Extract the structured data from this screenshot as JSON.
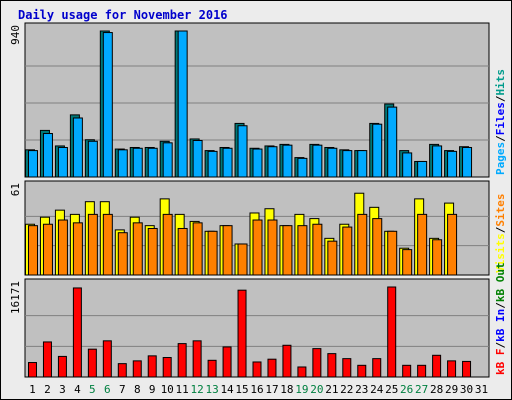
{
  "title": "Daily usage for November 2016",
  "colors": {
    "background": "#ececec",
    "panel": "#c0c0c0",
    "pages": "#00aaff",
    "files": "#0000ff",
    "hits": "#009c8c",
    "visits": "#ffff00",
    "sites": "#ff8000",
    "kb_in": "#0000ff",
    "kb_out": "#008000",
    "kb_f": "#ff0000",
    "weekday_text": "#000000",
    "weekend_text": "#008040"
  },
  "chart_data": [
    {
      "type": "bar",
      "panel": "hits",
      "ymax_label": "940",
      "ylim": [
        0,
        940
      ],
      "categories": [
        "1",
        "2",
        "3",
        "4",
        "5",
        "6",
        "7",
        "8",
        "9",
        "10",
        "11",
        "12",
        "13",
        "14",
        "15",
        "16",
        "17",
        "18",
        "19",
        "20",
        "21",
        "22",
        "23",
        "24",
        "25",
        "26",
        "27",
        "28",
        "29",
        "30",
        "31"
      ],
      "weekend": [
        "5",
        "6",
        "12",
        "13",
        "19",
        "20",
        "26",
        "27"
      ],
      "legend": [
        "Pages",
        "/",
        "Files",
        "/",
        "Hits"
      ],
      "series": [
        {
          "name": "Hits",
          "values": [
            175,
            300,
            200,
            400,
            240,
            940,
            180,
            190,
            190,
            230,
            940,
            245,
            170,
            190,
            345,
            185,
            200,
            210,
            125,
            210,
            190,
            175,
            170,
            345,
            470,
            170,
            100,
            210,
            170,
            195,
            0
          ]
        },
        {
          "name": "Pages",
          "values": [
            170,
            280,
            190,
            380,
            230,
            930,
            175,
            185,
            185,
            220,
            940,
            235,
            165,
            185,
            330,
            180,
            195,
            205,
            120,
            205,
            185,
            170,
            170,
            340,
            450,
            155,
            100,
            200,
            165,
            190,
            0
          ]
        }
      ]
    },
    {
      "type": "bar",
      "panel": "visits",
      "ymax_label": "61",
      "ylim": [
        0,
        61
      ],
      "categories": [
        "1",
        "2",
        "3",
        "4",
        "5",
        "6",
        "7",
        "8",
        "9",
        "10",
        "11",
        "12",
        "13",
        "14",
        "15",
        "16",
        "17",
        "18",
        "19",
        "20",
        "21",
        "22",
        "23",
        "24",
        "25",
        "26",
        "27",
        "28",
        "29",
        "30",
        "31"
      ],
      "weekend": [
        "5",
        "6",
        "12",
        "13",
        "19",
        "20",
        "26",
        "27"
      ],
      "legend": [
        "Visits",
        "/",
        "Sites"
      ],
      "series": [
        {
          "name": "Visits",
          "values": [
            36,
            41,
            46,
            43,
            52,
            52,
            32,
            41,
            35,
            54,
            43,
            38,
            31,
            35,
            22,
            44,
            47,
            35,
            43,
            40,
            26,
            36,
            58,
            48,
            31,
            19,
            54,
            26,
            51,
            0,
            0
          ]
        },
        {
          "name": "Sites",
          "values": [
            35,
            36,
            39,
            37,
            43,
            43,
            30,
            37,
            33,
            43,
            33,
            37,
            31,
            35,
            22,
            39,
            39,
            35,
            35,
            36,
            24,
            34,
            43,
            40,
            31,
            18,
            43,
            25,
            43,
            0,
            0
          ]
        }
      ]
    },
    {
      "type": "bar",
      "panel": "kbytes",
      "ymax_label": "16171",
      "ylim": [
        0,
        16171
      ],
      "categories": [
        "1",
        "2",
        "3",
        "4",
        "5",
        "6",
        "7",
        "8",
        "9",
        "10",
        "11",
        "12",
        "13",
        "14",
        "15",
        "16",
        "17",
        "18",
        "19",
        "20",
        "21",
        "22",
        "23",
        "24",
        "25",
        "26",
        "27",
        "28",
        "29",
        "30",
        "31"
      ],
      "weekend": [
        "5",
        "6",
        "12",
        "13",
        "19",
        "20",
        "26",
        "27"
      ],
      "legend": [
        "kB F",
        "/",
        "kB In",
        "/",
        "kB Out"
      ],
      "series": [
        {
          "name": "kB F",
          "values": [
            2600,
            6300,
            3700,
            16000,
            5000,
            6500,
            2400,
            2900,
            3800,
            3500,
            6000,
            6500,
            3000,
            5400,
            15600,
            2700,
            3200,
            5700,
            1800,
            5100,
            4200,
            3300,
            2100,
            3300,
            16171,
            2100,
            2100,
            3900,
            2900,
            2800,
            0
          ]
        }
      ]
    }
  ]
}
